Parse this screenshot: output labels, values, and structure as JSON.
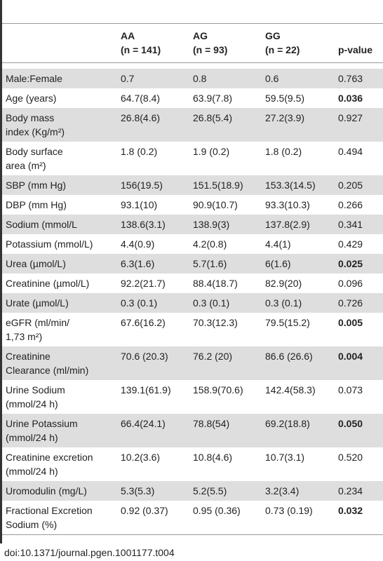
{
  "table": {
    "header": [
      [
        "AA",
        "(n = 141)"
      ],
      [
        "AG",
        "(n = 93)"
      ],
      [
        "GG",
        "(n = 22)"
      ],
      [
        "p-value"
      ]
    ],
    "rows": [
      {
        "label": [
          "Male:Female"
        ],
        "values": [
          "0.7",
          "0.8",
          "0.6"
        ],
        "p": "0.763",
        "bold": false
      },
      {
        "label": [
          "Age (years)"
        ],
        "values": [
          "64.7(8.4)",
          "63.9(7.8)",
          "59.5(9.5)"
        ],
        "p": "0.036",
        "bold": true
      },
      {
        "label": [
          "Body mass",
          "index (Kg/m²)"
        ],
        "values": [
          "26.8(4.6)",
          "26.8(5.4)",
          "27.2(3.9)"
        ],
        "p": "0.927",
        "bold": false
      },
      {
        "label": [
          "Body surface",
          "area (m²)"
        ],
        "values": [
          "1.8 (0.2)",
          "1.9 (0.2)",
          "1.8 (0.2)"
        ],
        "p": "0.494",
        "bold": false
      },
      {
        "label": [
          "SBP (mm Hg)"
        ],
        "values": [
          "156(19.5)",
          "151.5(18.9)",
          "153.3(14.5)"
        ],
        "p": "0.205",
        "bold": false
      },
      {
        "label": [
          "DBP (mm Hg)"
        ],
        "values": [
          "93.1(10)",
          "90.9(10.7)",
          "93.3(10.3)"
        ],
        "p": "0.266",
        "bold": false
      },
      {
        "label": [
          "Sodium (mmol/L"
        ],
        "values": [
          "138.6(3.1)",
          "138.9(3)",
          "137.8(2.9)"
        ],
        "p": "0.341",
        "bold": false
      },
      {
        "label": [
          "Potassium (mmol/L)"
        ],
        "values": [
          "4.4(0.9)",
          "4.2(0.8)",
          "4.4(1)"
        ],
        "p": "0.429",
        "bold": false
      },
      {
        "label": [
          "Urea (µmol/L)"
        ],
        "values": [
          "6.3(1.6)",
          "5.7(1.6)",
          "6(1.6)"
        ],
        "p": "0.025",
        "bold": true
      },
      {
        "label": [
          "Creatinine (µmol/L)"
        ],
        "values": [
          "92.2(21.7)",
          "88.4(18.7)",
          "82.9(20)"
        ],
        "p": "0.096",
        "bold": false
      },
      {
        "label": [
          "Urate (µmol/L)"
        ],
        "values": [
          "0.3 (0.1)",
          "0.3 (0.1)",
          "0.3 (0.1)"
        ],
        "p": "0.726",
        "bold": false
      },
      {
        "label": [
          "eGFR (ml/min/",
          "1,73 m²)"
        ],
        "values": [
          "67.6(16.2)",
          "70.3(12.3)",
          "79.5(15.2)"
        ],
        "p": "0.005",
        "bold": true
      },
      {
        "label": [
          "Creatinine",
          "Clearance (ml/min)"
        ],
        "values": [
          "70.6 (20.3)",
          "76.2 (20)",
          "86.6 (26.6)"
        ],
        "p": "0.004",
        "bold": true
      },
      {
        "label": [
          "Urine Sodium",
          "(mmol/24 h)"
        ],
        "values": [
          "139.1(61.9)",
          "158.9(70.6)",
          "142.4(58.3)"
        ],
        "p": "0.073",
        "bold": false
      },
      {
        "label": [
          "Urine Potassium",
          "(mmol/24 h)"
        ],
        "values": [
          "66.4(24.1)",
          "78.8(54)",
          "69.2(18.8)"
        ],
        "p": "0.050",
        "bold": true
      },
      {
        "label": [
          "Creatinine excretion",
          "(mmol/24 h)"
        ],
        "values": [
          "10.2(3.6)",
          "10.8(4.6)",
          "10.7(3.1)"
        ],
        "p": "0.520",
        "bold": false
      },
      {
        "label": [
          "Uromodulin (mg/L)"
        ],
        "values": [
          "5.3(5.3)",
          "5.2(5.5)",
          "3.2(3.4)"
        ],
        "p": "0.234",
        "bold": false
      },
      {
        "label": [
          "Fractional Excretion",
          "Sodium (%)"
        ],
        "values": [
          "0.92 (0.37)",
          "0.95 (0.36)",
          "0.73 (0.19)"
        ],
        "p": "0.032",
        "bold": true
      }
    ],
    "caption": "doi:10.1371/journal.pgen.1001177.t004"
  }
}
